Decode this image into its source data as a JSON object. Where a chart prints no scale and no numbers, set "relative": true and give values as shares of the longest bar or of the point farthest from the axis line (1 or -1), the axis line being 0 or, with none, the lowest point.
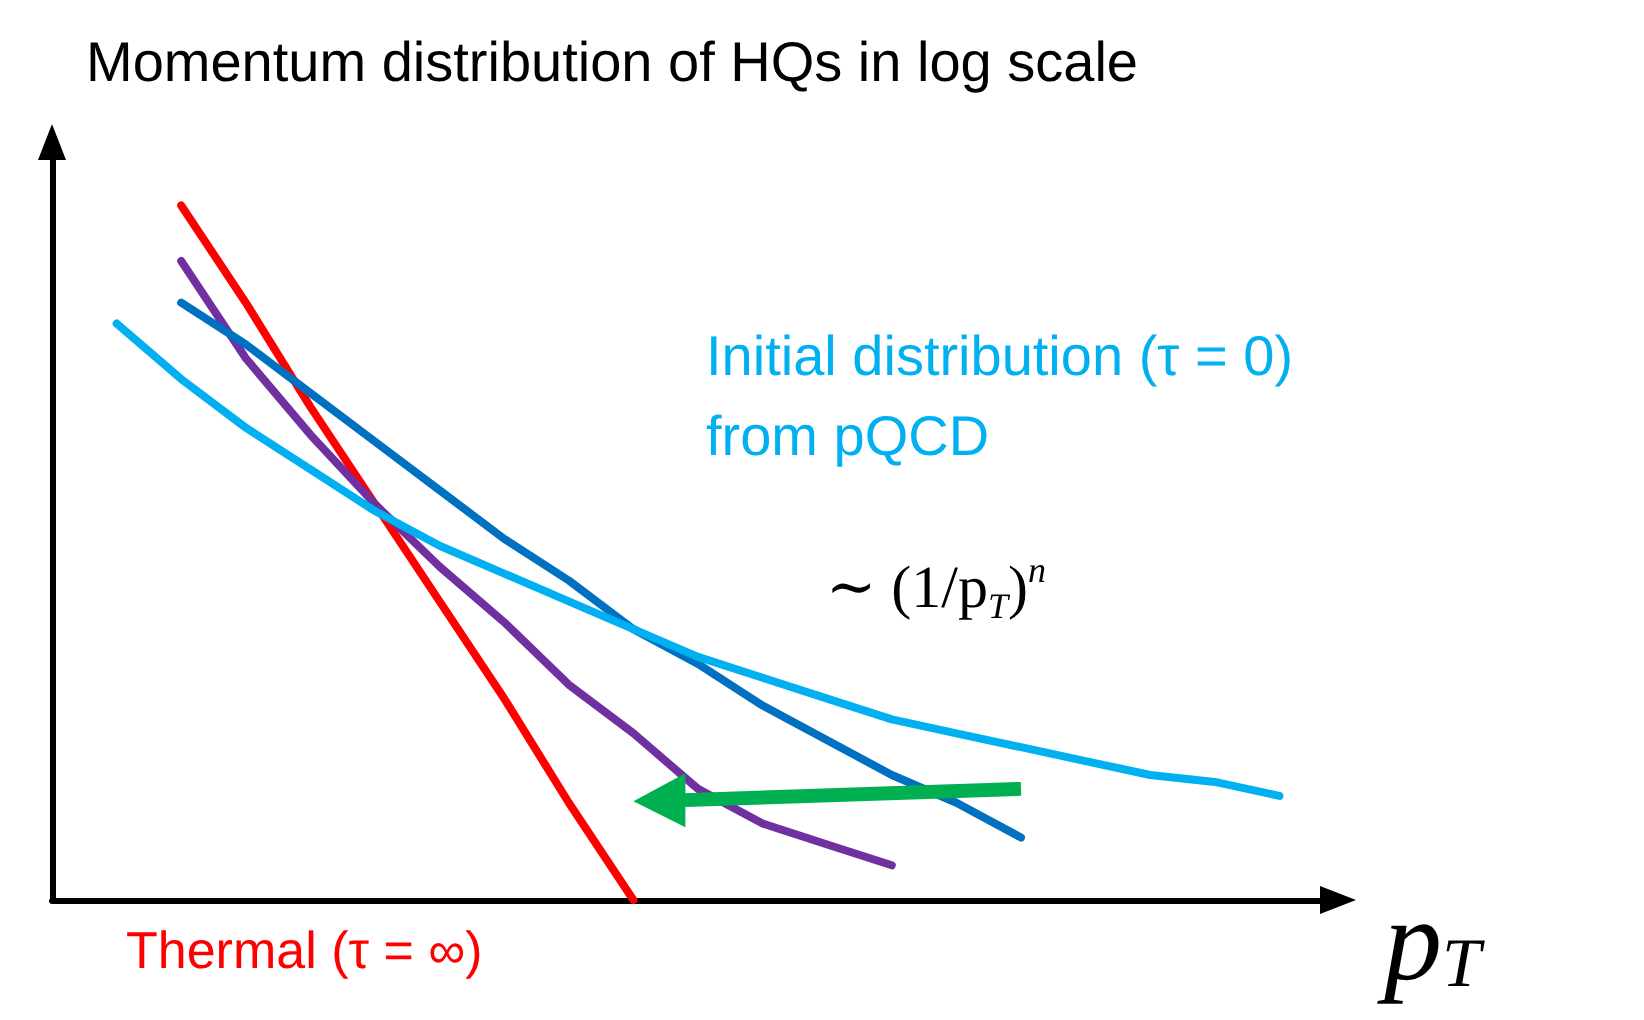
{
  "chart_data": {
    "type": "line",
    "title": "Momentum distribution of HQs in log scale",
    "xlabel": "p$_{T}$",
    "relative": true,
    "marker": "none",
    "line_style": "solid",
    "categories": [
      null,
      null,
      null,
      null,
      null,
      null,
      null,
      null,
      null,
      null,
      null,
      null,
      null,
      null,
      null,
      null,
      null,
      null,
      null,
      null,
      null
    ],
    "series": [
      {
        "color": "#ff0000",
        "values": [
          null,
          null,
          1,
          0.86,
          0.71,
          0.57,
          0.43,
          0.29,
          0.14,
          0,
          null,
          null,
          null,
          null,
          null,
          null,
          null,
          null,
          null,
          null,
          null
        ]
      },
      {
        "color": "#7030a0",
        "values": [
          null,
          null,
          0.92,
          0.78,
          0.67,
          0.57,
          0.48,
          0.4,
          0.31,
          0.24,
          0.16,
          0.11,
          0.08,
          0.05,
          null,
          null,
          null,
          null,
          null,
          null,
          null
        ]
      },
      {
        "color": "#0070c0",
        "values": [
          null,
          null,
          0.86,
          0.8,
          0.73,
          0.66,
          0.59,
          0.52,
          0.46,
          0.39,
          0.34,
          0.28,
          0.23,
          0.18,
          0.14,
          0.09,
          null,
          null,
          null,
          null,
          null
        ]
      },
      {
        "color": "#00b0f0",
        "values": [
          null,
          0.83,
          0.75,
          0.68,
          0.62,
          0.56,
          0.51,
          0.47,
          0.43,
          0.39,
          0.35,
          0.32,
          0.29,
          0.26,
          0.24,
          0.22,
          0.2,
          0.18,
          0.17,
          0.15,
          null
        ]
      }
    ],
    "annotations": [
      "Initial distribution (τ = 0)\nfrom pQCD",
      "∼ (1/p$_{T}$)$^{n}$",
      "Thermal (τ = ∞)"
    ]
  }
}
